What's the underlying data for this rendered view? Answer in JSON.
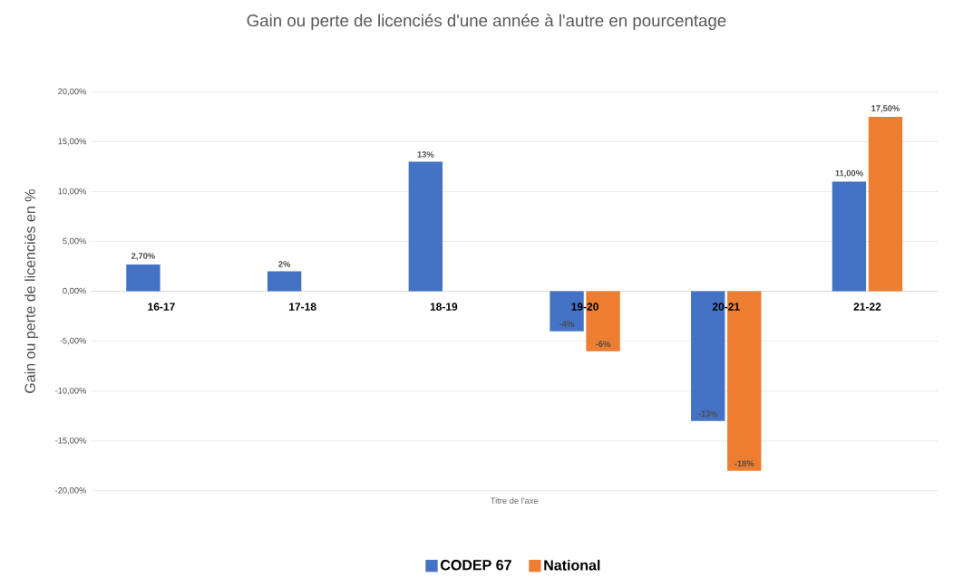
{
  "chart_data": {
    "type": "bar",
    "title": "Gain ou perte de licenciés d'une année à l'autre en pourcentage",
    "xlabel": "Titre de l'axe",
    "ylabel": "Gain ou perte de licenciés en %",
    "categories": [
      "16-17",
      "17-18",
      "18-19",
      "19-20",
      "20-21",
      "21-22"
    ],
    "series": [
      {
        "name": "CODEP 67",
        "color": "#4472c4",
        "values": [
          2.7,
          2,
          13,
          -4,
          -13,
          11
        ],
        "value_labels": [
          "2,70%",
          "2%",
          "13%",
          "-4%",
          "-13%",
          "11,00%"
        ]
      },
      {
        "name": "National",
        "color": "#ed7d31",
        "values": [
          null,
          null,
          null,
          -6,
          -18,
          17.5
        ],
        "value_labels": [
          null,
          null,
          null,
          "-6%",
          "-18%",
          "17,50%"
        ]
      }
    ],
    "ylim": [
      -20,
      20
    ],
    "yticks": [
      {
        "value": -20,
        "label": "-20,00%"
      },
      {
        "value": -15,
        "label": "-15,00%"
      },
      {
        "value": -10,
        "label": "-10,00%"
      },
      {
        "value": -5,
        "label": "-5,00%"
      },
      {
        "value": 0,
        "label": "0,00%"
      },
      {
        "value": 5,
        "label": "5,00%"
      },
      {
        "value": 10,
        "label": "10,00%"
      },
      {
        "value": 15,
        "label": "15,00%"
      },
      {
        "value": 20,
        "label": "20,00%"
      }
    ],
    "grid": "y",
    "legend": "bottom"
  }
}
